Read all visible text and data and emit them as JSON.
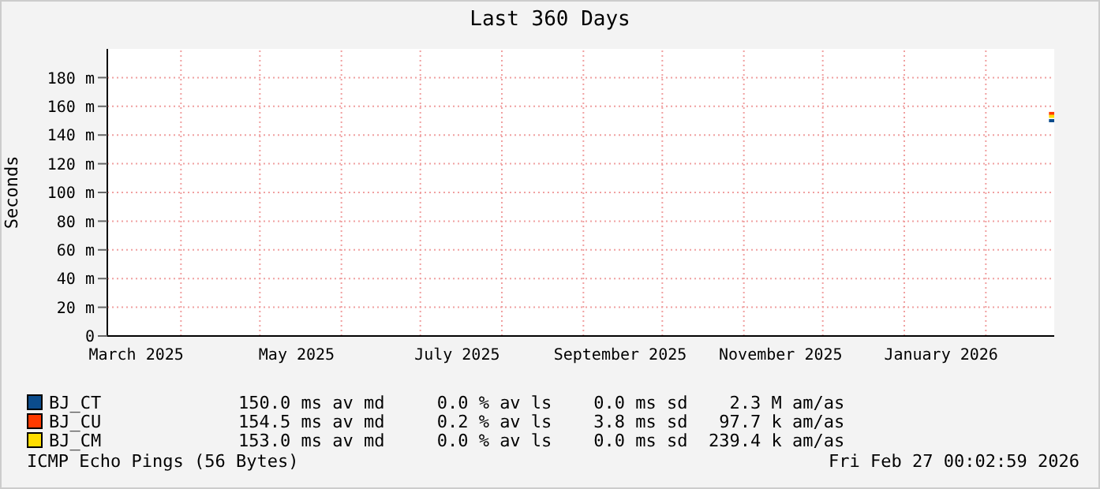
{
  "chart_data": {
    "type": "line",
    "title": "Last 360 Days",
    "ylabel": "Seconds",
    "xlim": [
      "2025-03-04",
      "2026-02-27"
    ],
    "xticks": [
      {
        "value": "2025-03-15",
        "label": "March 2025"
      },
      {
        "value": "2025-04-01",
        "label": null
      },
      {
        "value": "2025-05-01",
        "label": null
      },
      {
        "value": "2025-05-15",
        "label": "May 2025"
      },
      {
        "value": "2025-06-01",
        "label": null
      },
      {
        "value": "2025-07-01",
        "label": null
      },
      {
        "value": "2025-07-15",
        "label": "July 2025"
      },
      {
        "value": "2025-08-01",
        "label": null
      },
      {
        "value": "2025-09-01",
        "label": null
      },
      {
        "value": "2025-09-15",
        "label": "September 2025"
      },
      {
        "value": "2025-10-01",
        "label": null
      },
      {
        "value": "2025-11-01",
        "label": null
      },
      {
        "value": "2025-11-15",
        "label": "November 2025"
      },
      {
        "value": "2025-12-01",
        "label": null
      },
      {
        "value": "2026-01-01",
        "label": null
      },
      {
        "value": "2026-01-15",
        "label": "January 2026"
      },
      {
        "value": "2026-02-01",
        "label": null
      }
    ],
    "ylim": [
      0,
      200
    ],
    "yticks": [
      0,
      {
        "value": 20,
        "label": "20 m"
      },
      {
        "value": 40,
        "label": "40 m"
      },
      {
        "value": 60,
        "label": "60 m"
      },
      {
        "value": 80,
        "label": "80 m"
      },
      {
        "value": 100,
        "label": "100 m"
      },
      {
        "value": 120,
        "label": "120 m"
      },
      {
        "value": 140,
        "label": "140 m"
      },
      {
        "value": 160,
        "label": "160 m"
      },
      {
        "value": 180,
        "label": "180 m"
      }
    ],
    "grid": true,
    "legend": "bottom",
    "marker": "none",
    "series": [
      {
        "name": "BJ_CT",
        "color": "#0b4c8c",
        "x": [
          "2026-02-25",
          "2026-02-27"
        ],
        "values": [
          150,
          150
        ]
      },
      {
        "name": "BJ_CU",
        "color": "#ff3a00",
        "x": [
          "2026-02-25",
          "2026-02-27"
        ],
        "values": [
          155,
          155
        ]
      },
      {
        "name": "BJ_CM",
        "color": "#ffdd00",
        "x": [
          "2026-02-25",
          "2026-02-27"
        ],
        "values": [
          153,
          153
        ]
      }
    ],
    "annotations": [
      "150.0 ms av md     0.0 % av ls    0.0 ms sd    2.3 M am/as",
      "154.5 ms av md     0.2 % av ls    3.8 ms sd   97.7 k am/as",
      "153.0 ms av md     0.0 % av ls    0.0 ms sd  239.4 k am/as",
      "ICMP Echo Pings (56 Bytes)",
      "Fri Feb 27 00:02:59 2026"
    ]
  }
}
